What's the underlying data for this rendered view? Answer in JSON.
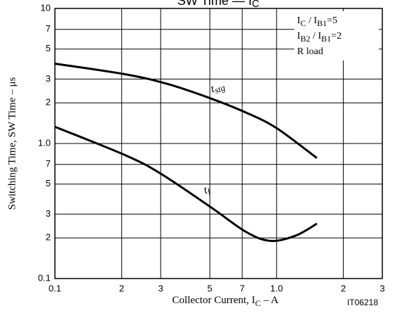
{
  "chart_data": {
    "type": "line",
    "title": [
      "SW Time — I",
      "C"
    ],
    "x_label": [
      "Collector Current, I",
      "C",
      " – A"
    ],
    "y_label": "Switching Time, SW Time – μs",
    "xscale": "log",
    "yscale": "log",
    "grid": true,
    "xlim": [
      0.1,
      3
    ],
    "ylim": [
      0.1,
      10
    ],
    "xticks": [
      0.1,
      {
        "value": 0.2,
        "label": "2"
      },
      {
        "value": 0.3,
        "label": "3"
      },
      {
        "value": 0.5,
        "label": "5"
      },
      {
        "value": 0.7,
        "label": "7"
      },
      {
        "value": 1,
        "label": "1.0"
      },
      2,
      3
    ],
    "yticks": [
      0.1,
      {
        "value": 0.2,
        "label": "2"
      },
      {
        "value": 0.3,
        "label": "3"
      },
      {
        "value": 0.5,
        "label": "5"
      },
      {
        "value": 0.7,
        "label": "7"
      },
      {
        "value": 1,
        "label": "1.0"
      },
      2,
      3,
      5,
      7,
      10
    ],
    "series": [
      {
        "name": [
          "t",
          "stg"
        ],
        "color": "#000000",
        "x": [
          0.1,
          0.211,
          0.327,
          0.507,
          0.73,
          1.0,
          1.52
        ],
        "values": [
          3.9,
          3.24,
          2.74,
          2.15,
          1.69,
          1.3,
          0.78
        ]
      },
      {
        "name": [
          "t",
          "f"
        ],
        "color": "#000000",
        "x": [
          0.1,
          0.211,
          0.304,
          0.507,
          0.73,
          0.94,
          1.22,
          1.52
        ],
        "values": [
          1.33,
          0.81,
          0.59,
          0.336,
          0.221,
          0.19,
          0.208,
          0.255
        ]
      }
    ],
    "conditions": [
      [
        "I",
        "C",
        " / I",
        "B1",
        "=5"
      ],
      [
        "I",
        "B2",
        " / I",
        "B1",
        "=2"
      ],
      [
        "R load"
      ]
    ],
    "figure_id": "IT06218"
  }
}
